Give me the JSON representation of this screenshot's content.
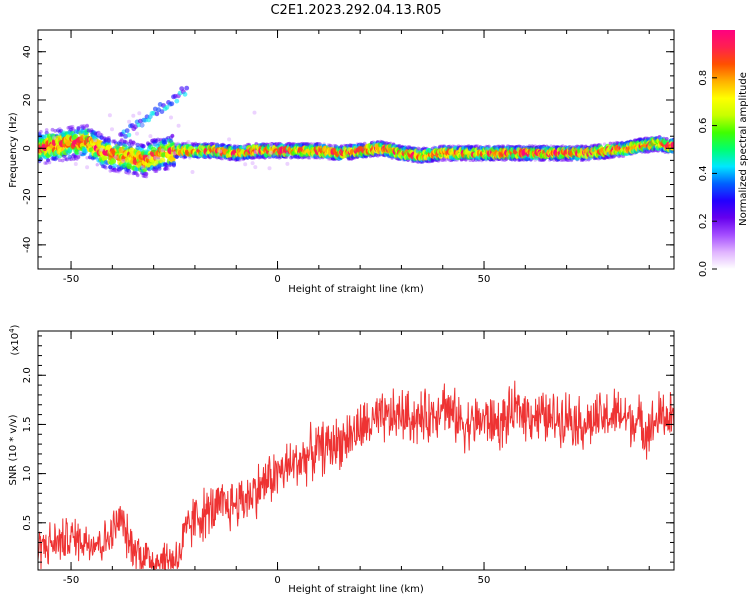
{
  "title": "C2E1.2023.292.04.13.R05",
  "chart_data": [
    {
      "type": "heatmap",
      "xlabel": "Height of straight line (km)",
      "ylabel": "Frequency (Hz)",
      "xlim": [
        -58,
        96
      ],
      "ylim": [
        -50,
        49
      ],
      "xticks": [
        "-50",
        "0",
        "50"
      ],
      "yticks": [
        "40",
        "20",
        "0",
        "-20",
        "-40"
      ],
      "ridge": {
        "x": [
          -58,
          -55,
          -50,
          -46,
          -42,
          -38,
          -35,
          -32,
          -30,
          -27,
          -24,
          -20,
          -15,
          -10,
          -5,
          0,
          5,
          10,
          15,
          20,
          25,
          30,
          35,
          40,
          45,
          50,
          55,
          60,
          65,
          70,
          75,
          80,
          85,
          88,
          92,
          95
        ],
        "y": [
          0,
          1,
          2,
          3,
          -2,
          -3,
          -4,
          -5,
          -3,
          -2,
          -1,
          -1,
          -1,
          -2,
          -1,
          -1,
          -1,
          -1,
          -2,
          -1,
          0,
          -2,
          -3,
          -2,
          -2,
          -2,
          -2,
          -2,
          -2,
          -2,
          -2,
          -1,
          0,
          1,
          2,
          1
        ]
      },
      "colorbar": {
        "label": "Normalized spectral amplitude",
        "range": [
          0,
          1
        ],
        "ticks": [
          "0.0",
          "0.2",
          "0.4",
          "0.6",
          "0.8"
        ],
        "colors": [
          "#ffffff",
          "#e0b3ff",
          "#a44dff",
          "#6600ee",
          "#2200ff",
          "#0060ff",
          "#00e8ff",
          "#00ff70",
          "#40ff00",
          "#c8ff00",
          "#ffff00",
          "#ffb000",
          "#ff5000",
          "#ff2050",
          "#ff0080"
        ]
      }
    },
    {
      "type": "line",
      "xlabel": "Height of straight line (km)",
      "ylabel": "SNR (10 * v/v)",
      "scale_label": "(x10",
      "scale_exp": "4",
      "scale_close": ")",
      "xlim": [
        -58,
        96
      ],
      "ylim": [
        0.02,
        2.45
      ],
      "xticks": [
        "-50",
        "0",
        "50"
      ],
      "yticks": [
        "2.0",
        "1.5",
        "1.0",
        "0.5"
      ],
      "line_color": "#ee3333",
      "series": [
        {
          "x": [
            -58,
            -54,
            -50,
            -46,
            -42,
            -40,
            -38,
            -36,
            -33,
            -30,
            -27,
            -24,
            -22,
            -20,
            -17,
            -14,
            -10,
            -6,
            -2,
            2,
            6,
            10,
            14,
            18,
            22,
            26,
            30,
            34,
            38,
            40,
            42,
            46,
            50,
            54,
            58,
            62,
            66,
            70,
            74,
            78,
            82,
            86,
            90,
            93,
            96
          ],
          "values": [
            0.25,
            0.3,
            0.35,
            0.32,
            0.3,
            0.4,
            0.55,
            0.3,
            0.18,
            0.12,
            0.12,
            0.15,
            0.4,
            0.55,
            0.6,
            0.65,
            0.7,
            0.8,
            0.95,
            1.05,
            1.15,
            1.25,
            1.3,
            1.4,
            1.5,
            1.55,
            1.6,
            1.55,
            1.6,
            1.75,
            1.6,
            1.5,
            1.55,
            1.5,
            1.65,
            1.6,
            1.55,
            1.6,
            1.5,
            1.55,
            1.6,
            1.55,
            1.45,
            1.6,
            1.55
          ]
        }
      ]
    }
  ]
}
